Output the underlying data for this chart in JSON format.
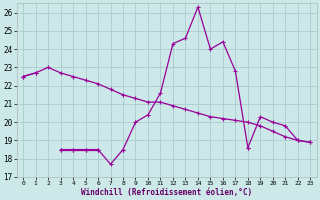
{
  "xlabel": "Windchill (Refroidissement éolien,°C)",
  "background_color": "#cce8e8",
  "grid_color": "#aacccc",
  "line_color": "#990099",
  "xlim": [
    -0.5,
    23.5
  ],
  "ylim": [
    17,
    26.5
  ],
  "yticks": [
    17,
    18,
    19,
    20,
    21,
    22,
    23,
    24,
    25,
    26
  ],
  "xticks": [
    0,
    1,
    2,
    3,
    4,
    5,
    6,
    7,
    8,
    9,
    10,
    11,
    12,
    13,
    14,
    15,
    16,
    17,
    18,
    19,
    20,
    21,
    22,
    23
  ],
  "series1_y": [
    22.5,
    22.7,
    23.0,
    22.7,
    22.5,
    22.3,
    22.1,
    21.8,
    21.5,
    21.3,
    21.1,
    21.1,
    20.9,
    20.7,
    20.5,
    20.3,
    20.2,
    20.1,
    20.0,
    19.8,
    19.5,
    19.2,
    19.0,
    18.9
  ],
  "series2_y": [
    22.5,
    22.7,
    null,
    18.5,
    18.5,
    18.5,
    18.5,
    17.7,
    18.5,
    20.0,
    20.4,
    21.6,
    24.3,
    24.6,
    26.3,
    24.0,
    24.4,
    22.8,
    18.6,
    20.3,
    20.0,
    19.8,
    19.0,
    18.9
  ],
  "series3_y": [
    null,
    null,
    null,
    18.5,
    18.5,
    18.5,
    18.5,
    null,
    18.5,
    null,
    null,
    null,
    null,
    null,
    null,
    null,
    null,
    null,
    18.6,
    null,
    null,
    null,
    null,
    null
  ]
}
